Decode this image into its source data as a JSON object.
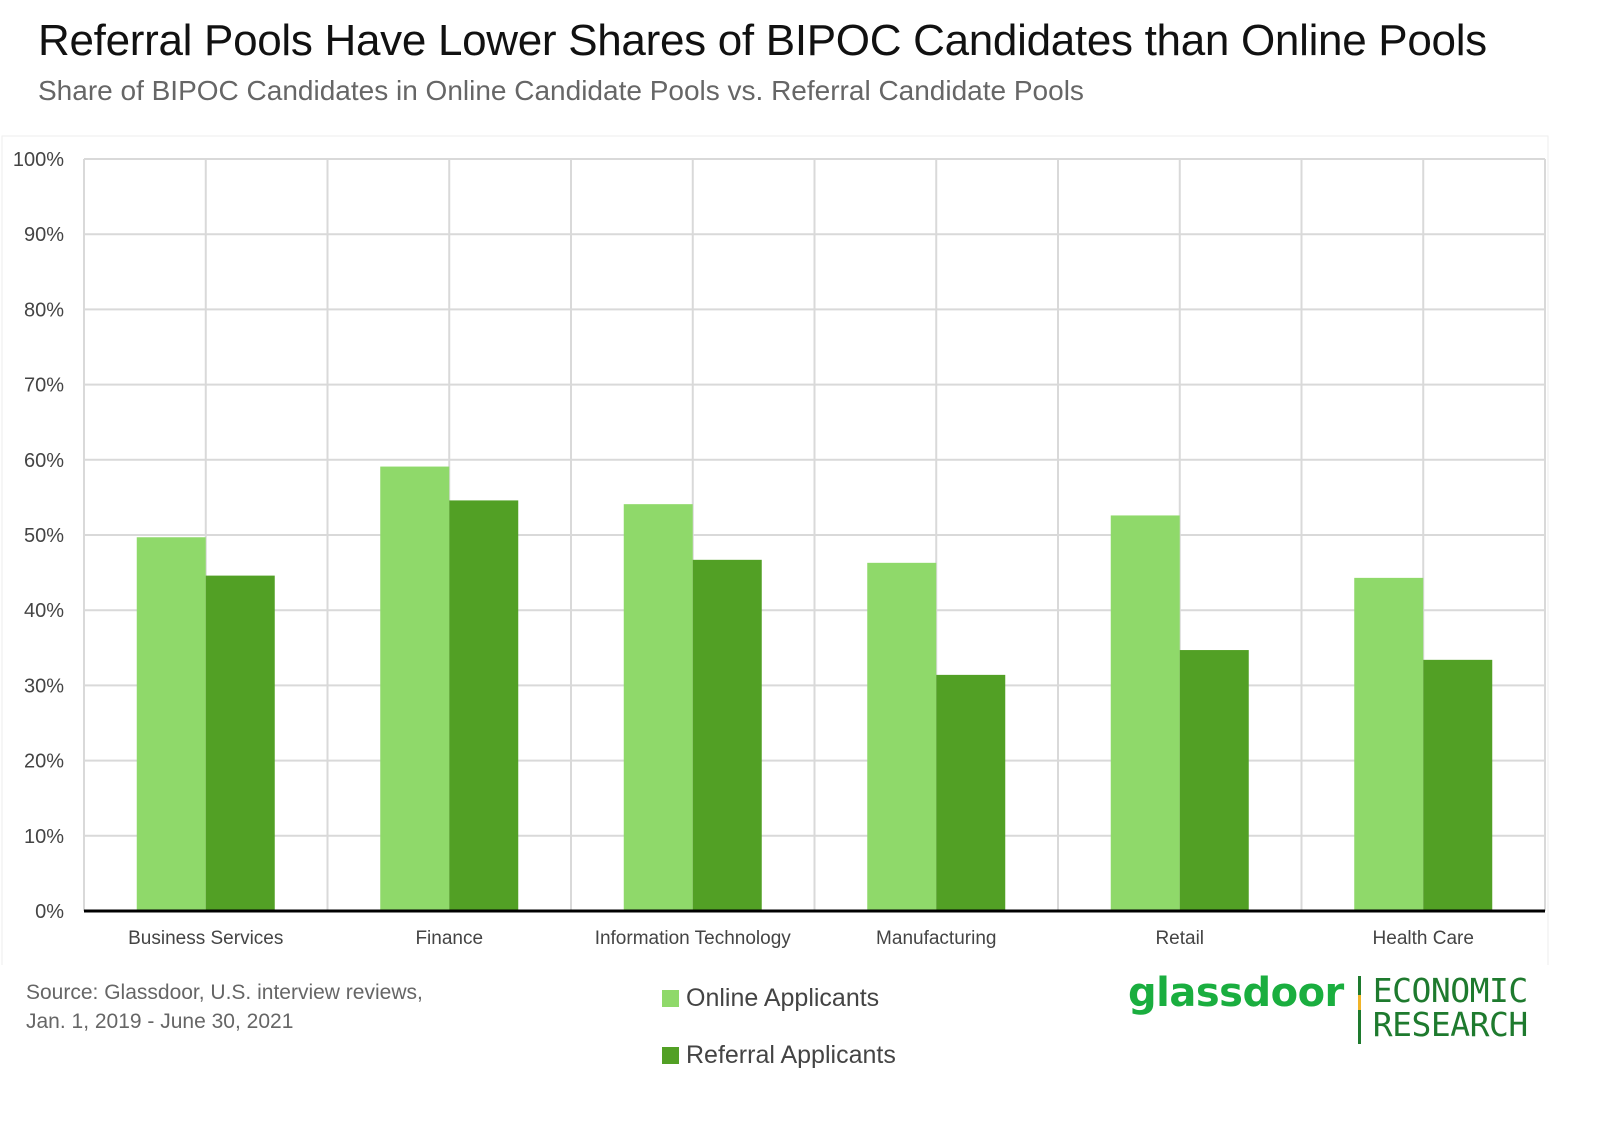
{
  "header": {
    "title": "Referral Pools Have Lower Shares of BIPOC Candidates than Online Pools",
    "subtitle": "Share of BIPOC Candidates in Online Candidate Pools vs. Referral Candidate Pools"
  },
  "source": {
    "line1": "Source: Glassdoor, U.S. interview reviews,",
    "line2": "Jan. 1, 2019 - June 30, 2021"
  },
  "logo": {
    "word": "glassdoor",
    "sub_line1": "ECONOMIC",
    "sub_line2": "RESEARCH"
  },
  "colors": {
    "online": "#8fd96a",
    "referral": "#52a025",
    "grid": "#d9d9d9",
    "axis": "#000000",
    "tick_text": "#444444",
    "logo_green": "#1aae3f",
    "logo_dark": "#1e7a2e"
  },
  "chart_data": {
    "type": "bar",
    "title": "Referral Pools Have Lower Shares of BIPOC Candidates than Online Pools",
    "subtitle": "Share of BIPOC Candidates in Online Candidate Pools vs. Referral Candidate Pools",
    "categories": [
      "Business Services",
      "Finance",
      "Information Technology",
      "Manufacturing",
      "Retail",
      "Health Care"
    ],
    "series": [
      {
        "name": "Online Applicants",
        "values": [
          49.7,
          59.1,
          54.1,
          46.3,
          52.6,
          44.3
        ]
      },
      {
        "name": "Referral Applicants",
        "values": [
          44.6,
          54.6,
          46.7,
          31.4,
          34.7,
          33.4
        ]
      }
    ],
    "ylim": [
      0,
      100
    ],
    "yticks": [
      "0%",
      "10%",
      "20%",
      "30%",
      "40%",
      "50%",
      "60%",
      "70%",
      "80%",
      "90%",
      "100%"
    ],
    "grid": true,
    "legend_position": "bottom-center"
  }
}
